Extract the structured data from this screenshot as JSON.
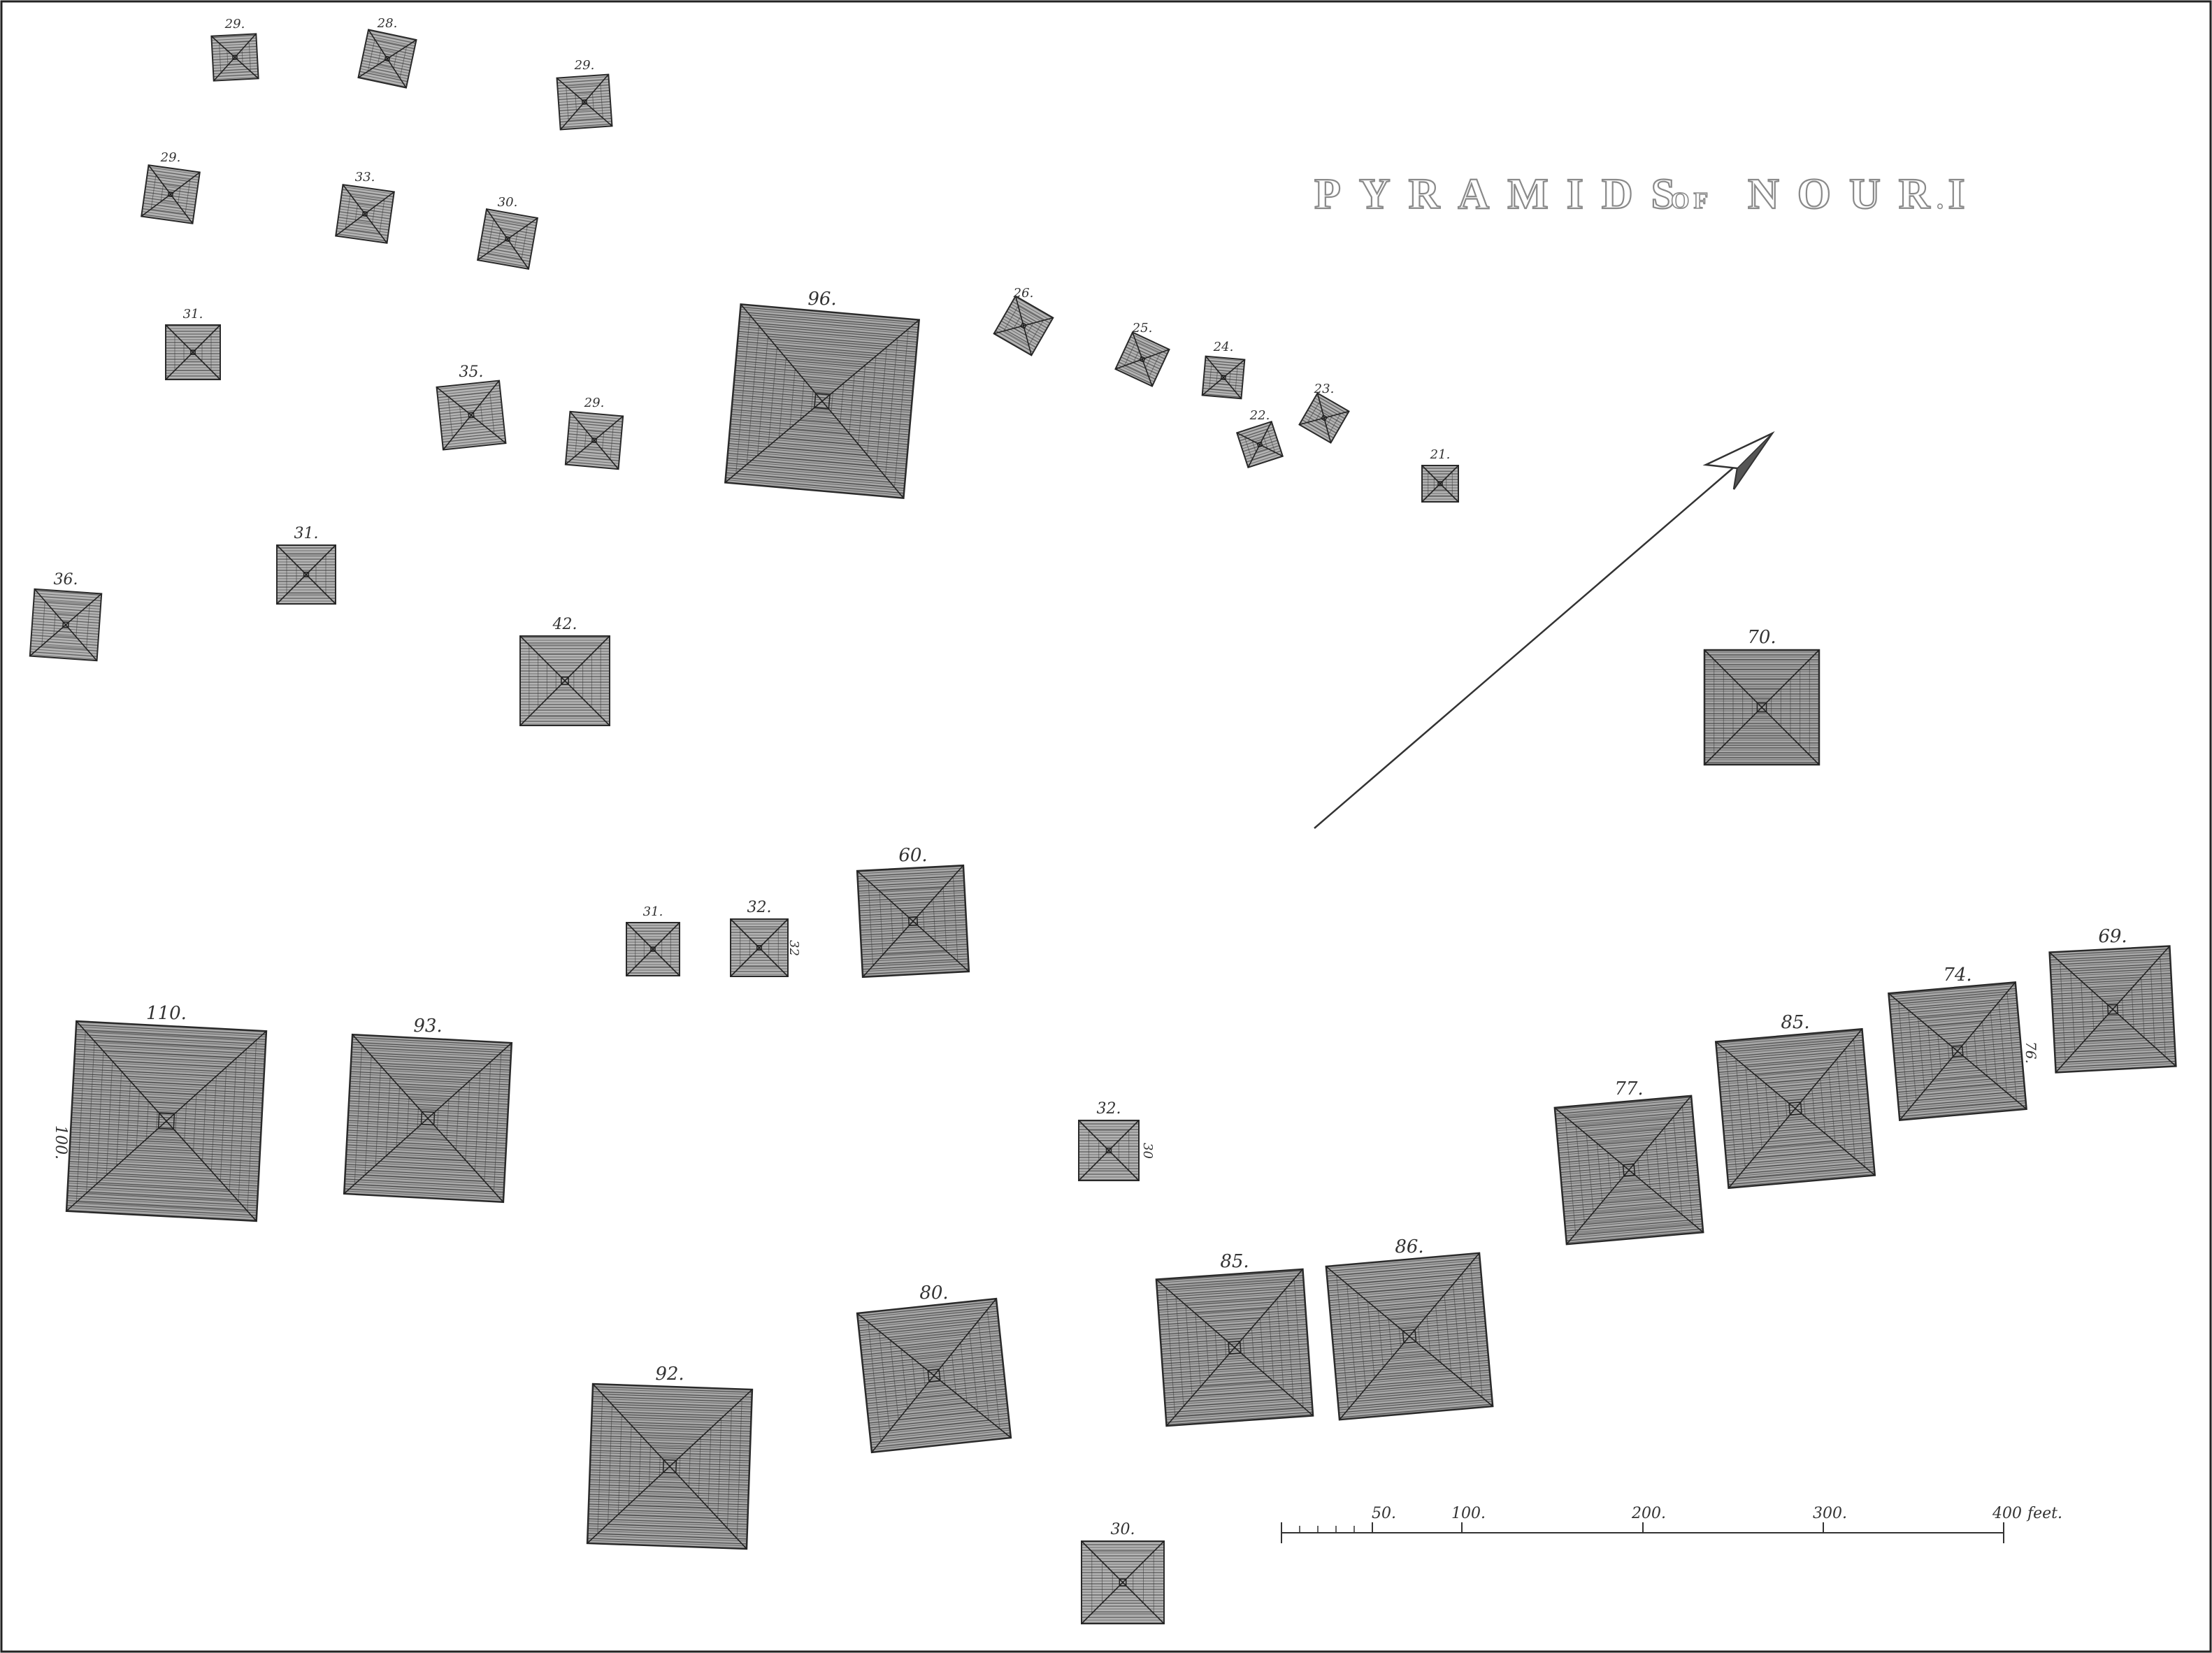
{
  "title": {
    "word1": "PYRAMIDS",
    "word2": "OF",
    "word3": "NOURI",
    "dot": "."
  },
  "pyramids": [
    {
      "id": "p-29a",
      "label": "29."
    },
    {
      "id": "p-28",
      "label": "28."
    },
    {
      "id": "p-29b",
      "label": "29."
    },
    {
      "id": "p-29c",
      "label": "29."
    },
    {
      "id": "p-33",
      "label": "33."
    },
    {
      "id": "p-30",
      "label": "30."
    },
    {
      "id": "p-31a",
      "label": "31."
    },
    {
      "id": "p-35",
      "label": "35."
    },
    {
      "id": "p-29d",
      "label": "29."
    },
    {
      "id": "p-96",
      "label": "96."
    },
    {
      "id": "p-26",
      "label": "26."
    },
    {
      "id": "p-25",
      "label": "25."
    },
    {
      "id": "p-24",
      "label": "24."
    },
    {
      "id": "p-22",
      "label": "22."
    },
    {
      "id": "p-23",
      "label": "23."
    },
    {
      "id": "p-21",
      "label": "21."
    },
    {
      "id": "p-31b",
      "label": "31."
    },
    {
      "id": "p-36",
      "label": "36."
    },
    {
      "id": "p-42",
      "label": "42."
    },
    {
      "id": "p-70",
      "label": "70."
    },
    {
      "id": "p-31c",
      "label": "31."
    },
    {
      "id": "p-32a",
      "label": "32."
    },
    {
      "id": "p-60",
      "label": "60."
    },
    {
      "id": "p-110",
      "label": "110."
    },
    {
      "id": "p-93",
      "label": "93."
    },
    {
      "id": "p-32b",
      "label": "32."
    },
    {
      "id": "p-77",
      "label": "77."
    },
    {
      "id": "p-85a",
      "label": "85."
    },
    {
      "id": "p-74",
      "label": "74."
    },
    {
      "id": "p-69",
      "label": "69."
    },
    {
      "id": "p-85b",
      "label": "85."
    },
    {
      "id": "p-86",
      "label": "86."
    },
    {
      "id": "p-80",
      "label": "80."
    },
    {
      "id": "p-92",
      "label": "92."
    },
    {
      "id": "p-30b",
      "label": "30."
    }
  ],
  "side_labels": {
    "s110": "100.",
    "s32a": "32",
    "s32b": "30",
    "s74": "76."
  },
  "scale_bar": {
    "ticks": [
      "50.",
      "100.",
      "200.",
      "300.",
      "400"
    ],
    "unit": "feet."
  },
  "colors": {
    "ink": "#333333",
    "fill": "#9a9a9a",
    "frame": "#222222"
  }
}
